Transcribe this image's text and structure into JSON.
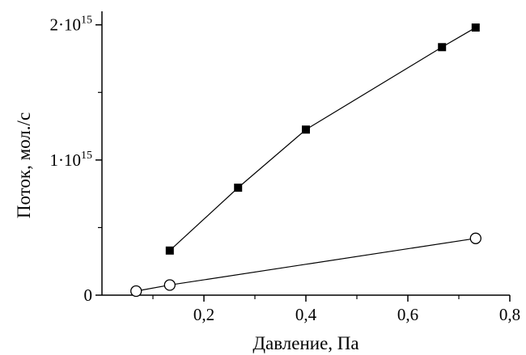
{
  "chart_data": {
    "type": "scatter",
    "xlabel": "Давление, Па",
    "ylabel": "Поток, мол./с",
    "xlim": [
      0.0,
      0.8
    ],
    "ylim": [
      0,
      2100000000000000.0
    ],
    "x_ticks": [
      0.2,
      0.4,
      0.6,
      0.8
    ],
    "x_tick_labels": [
      "0,2",
      "0,4",
      "0,6",
      "0,8"
    ],
    "y_ticks": [
      0,
      1000000000000000.0,
      2000000000000000.0
    ],
    "y_tick_labels": [
      {
        "base": "0",
        "exp": ""
      },
      {
        "base": "1·10",
        "exp": "15"
      },
      {
        "base": "2·10",
        "exp": "15"
      }
    ],
    "grid": false,
    "series": [
      {
        "marker": "filled-square",
        "color": "#000000",
        "x": [
          0.133,
          0.267,
          0.4,
          0.667,
          0.733
        ],
        "y": [
          330000000000000.0,
          795000000000000.0,
          1225000000000000.0,
          1835000000000000.0,
          1980000000000000.0
        ]
      },
      {
        "marker": "open-circle",
        "color": "#000000",
        "x": [
          0.067,
          0.133,
          0.733
        ],
        "y": [
          30000000000000.0,
          75000000000000.0,
          420000000000000.0
        ]
      }
    ]
  }
}
